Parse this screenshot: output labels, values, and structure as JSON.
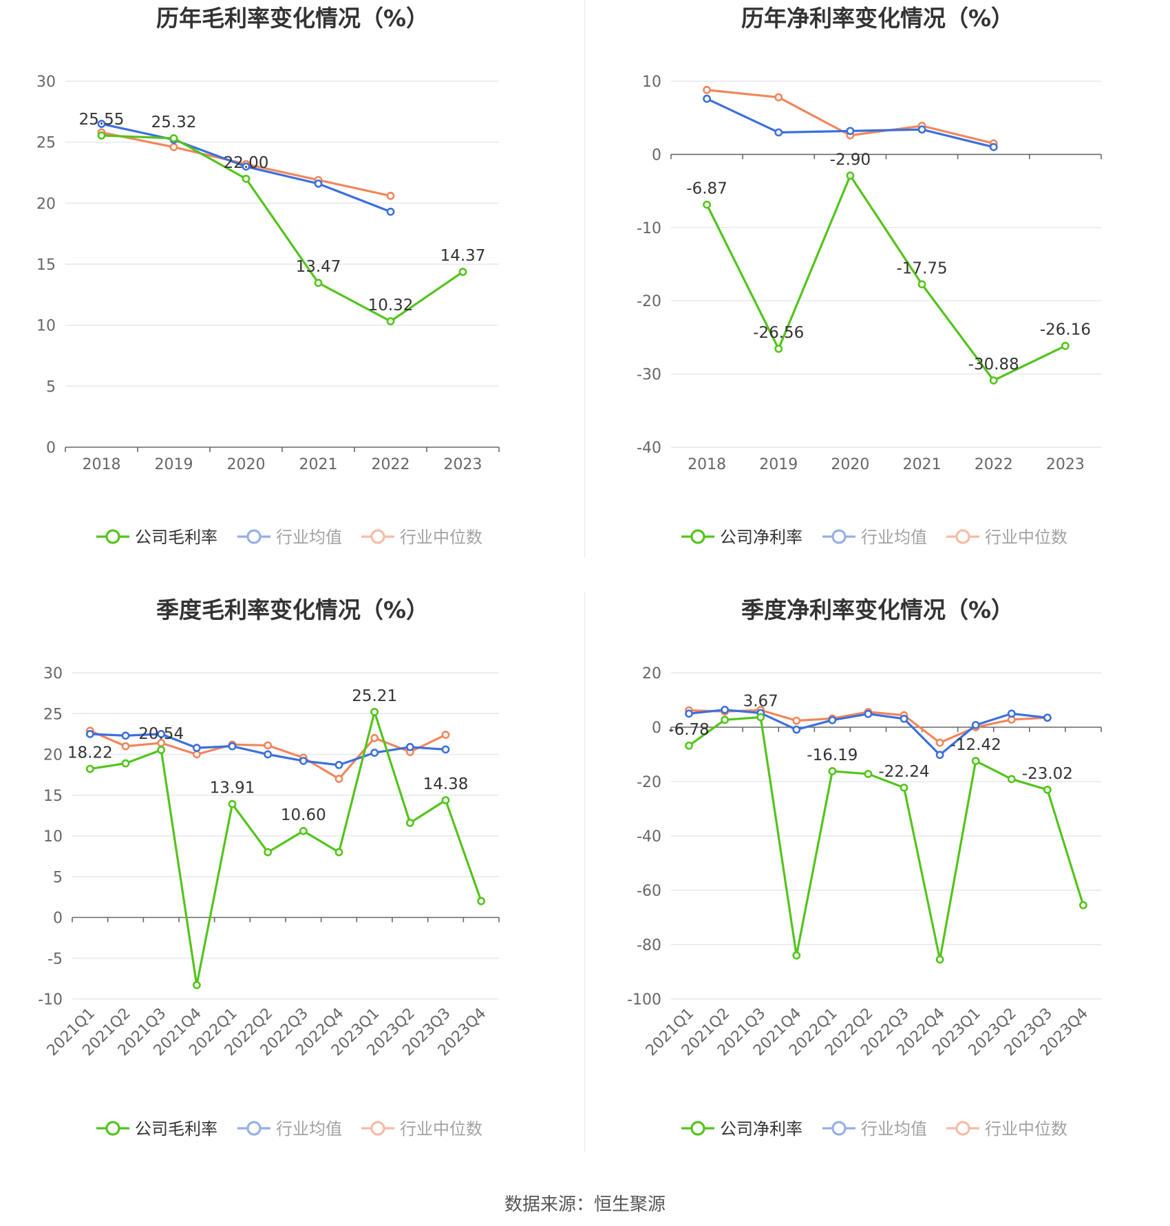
{
  "colors": {
    "company": "#52c41a",
    "avg": "#3b6fdc",
    "median": "#f2855b"
  },
  "source_text": "数据来源：恒生聚源",
  "chart_data": [
    {
      "type": "line",
      "title": "历年毛利率变化情况（%）",
      "categories": [
        "2018",
        "2019",
        "2020",
        "2021",
        "2022",
        "2023"
      ],
      "ylim": [
        0,
        30
      ],
      "yticks": [
        0,
        5,
        10,
        15,
        20,
        25,
        30
      ],
      "grid": true,
      "legend_position": "bottom",
      "series": [
        {
          "name": "公司毛利率",
          "key": "company",
          "values": [
            25.55,
            25.32,
            22.0,
            13.47,
            10.32,
            14.37
          ],
          "labels": [
            "25.55",
            "25.32",
            "22.00",
            "13.47",
            "10.32",
            "14.37"
          ]
        },
        {
          "name": "行业均值",
          "key": "avg",
          "values": [
            26.5,
            25.2,
            23.0,
            21.6,
            19.3,
            null
          ]
        },
        {
          "name": "行业中位数",
          "key": "median",
          "values": [
            25.8,
            24.6,
            23.2,
            21.9,
            20.6,
            null
          ]
        }
      ]
    },
    {
      "type": "line",
      "title": "历年净利率变化情况（%）",
      "categories": [
        "2018",
        "2019",
        "2020",
        "2021",
        "2022",
        "2023"
      ],
      "ylim": [
        -40,
        10
      ],
      "yticks": [
        -40,
        -30,
        -20,
        -10,
        0,
        10
      ],
      "grid": true,
      "legend_position": "bottom",
      "series": [
        {
          "name": "公司净利率",
          "key": "company",
          "values": [
            -6.87,
            -26.56,
            -2.9,
            -17.75,
            -30.88,
            -26.16
          ],
          "labels": [
            "-6.87",
            "-26.56",
            "-2.90",
            "-17.75",
            "-30.88",
            "-26.16"
          ]
        },
        {
          "name": "行业均值",
          "key": "avg",
          "values": [
            7.6,
            3.0,
            3.2,
            3.4,
            1.0,
            null
          ]
        },
        {
          "name": "行业中位数",
          "key": "median",
          "values": [
            8.8,
            7.8,
            2.6,
            3.9,
            1.5,
            null
          ]
        }
      ]
    },
    {
      "type": "line",
      "title": "季度毛利率变化情况（%）",
      "categories": [
        "2021Q1",
        "2021Q2",
        "2021Q3",
        "2021Q4",
        "2022Q1",
        "2022Q2",
        "2022Q3",
        "2022Q4",
        "2023Q1",
        "2023Q2",
        "2023Q3",
        "2023Q4"
      ],
      "ylim": [
        -10,
        30
      ],
      "yticks": [
        -10,
        -5,
        0,
        5,
        10,
        15,
        20,
        25,
        30
      ],
      "grid": true,
      "legend_position": "bottom",
      "series": [
        {
          "name": "公司毛利率",
          "key": "company",
          "values": [
            18.22,
            18.9,
            20.54,
            -8.3,
            13.91,
            8.0,
            10.6,
            8.0,
            25.21,
            11.6,
            14.38,
            2.0
          ],
          "labels": [
            "18.22",
            "",
            "20.54",
            "",
            "13.91",
            "",
            "10.60",
            "",
            "25.21",
            "",
            "14.38",
            ""
          ]
        },
        {
          "name": "行业均值",
          "key": "avg",
          "values": [
            22.5,
            22.3,
            22.5,
            20.8,
            21.0,
            20.0,
            19.2,
            18.7,
            20.2,
            20.9,
            20.6,
            null
          ]
        },
        {
          "name": "行业中位数",
          "key": "median",
          "values": [
            22.9,
            21.0,
            21.4,
            20.0,
            21.2,
            21.1,
            19.6,
            17.0,
            22.0,
            20.3,
            22.4,
            null
          ]
        }
      ]
    },
    {
      "type": "line",
      "title": "季度净利率变化情况（%）",
      "categories": [
        "2021Q1",
        "2021Q2",
        "2021Q3",
        "2021Q4",
        "2022Q1",
        "2022Q2",
        "2022Q3",
        "2022Q4",
        "2023Q1",
        "2023Q2",
        "2023Q3",
        "2023Q4"
      ],
      "ylim": [
        -100,
        20
      ],
      "yticks": [
        -100,
        -80,
        -60,
        -40,
        -20,
        0,
        20
      ],
      "grid": true,
      "legend_position": "bottom",
      "series": [
        {
          "name": "公司净利率",
          "key": "company",
          "values": [
            -6.78,
            2.7,
            3.67,
            -84.0,
            -16.19,
            -17.2,
            -22.24,
            -85.5,
            -12.42,
            -19.1,
            -23.02,
            -65.5
          ],
          "labels": [
            "-6.78",
            "",
            "3.67",
            "",
            "-16.19",
            "",
            "-22.24",
            "",
            "-12.42",
            "",
            "-23.02",
            ""
          ]
        },
        {
          "name": "行业均值",
          "key": "avg",
          "values": [
            5.0,
            6.4,
            5.2,
            -0.9,
            2.6,
            4.9,
            3.1,
            -10.2,
            0.8,
            5.0,
            3.5,
            null
          ]
        },
        {
          "name": "行业中位数",
          "key": "median",
          "values": [
            6.2,
            5.8,
            6.3,
            2.4,
            3.2,
            5.6,
            4.4,
            -5.7,
            0.0,
            2.8,
            3.5,
            null
          ]
        }
      ]
    }
  ]
}
